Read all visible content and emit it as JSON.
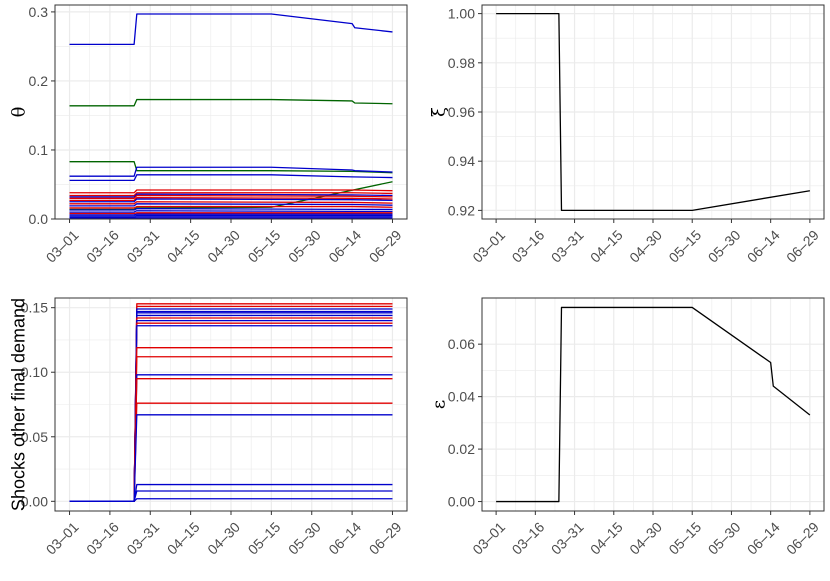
{
  "colors": {
    "red": "#e00000",
    "blue": "#0000cc",
    "green": "#006400",
    "black": "#000000",
    "grid": "#ebebeb",
    "panel_border": "#333333",
    "tick_text": "#4d4d4d"
  },
  "chart_data": [
    {
      "id": "theta",
      "type": "line",
      "ylabel": "θ",
      "x_ticks": [
        "03–01",
        "03–16",
        "03–31",
        "04–15",
        "04–30",
        "05–15",
        "05–30",
        "06–14",
        "06–29"
      ],
      "x_range": [
        "03-01",
        "06-29"
      ],
      "y_ticks": [
        "0.0",
        "0.1",
        "0.2",
        "0.3"
      ],
      "y_range": [
        0,
        0.31
      ],
      "grid": true,
      "series": [
        {
          "color": "blue",
          "points": [
            [
              "03-01",
              0.253
            ],
            [
              "03-25",
              0.253
            ],
            [
              "03-26",
              0.297
            ],
            [
              "05-15",
              0.297
            ],
            [
              "06-14",
              0.283
            ],
            [
              "06-15",
              0.277
            ],
            [
              "06-29",
              0.271
            ]
          ]
        },
        {
          "color": "green",
          "points": [
            [
              "03-01",
              0.164
            ],
            [
              "03-25",
              0.164
            ],
            [
              "03-26",
              0.173
            ],
            [
              "05-15",
              0.173
            ],
            [
              "06-14",
              0.171
            ],
            [
              "06-15",
              0.168
            ],
            [
              "06-29",
              0.167
            ]
          ]
        },
        {
          "color": "green",
          "points": [
            [
              "03-01",
              0.083
            ],
            [
              "03-25",
              0.083
            ],
            [
              "03-26",
              0.07
            ],
            [
              "05-15",
              0.07
            ],
            [
              "06-14",
              0.069
            ],
            [
              "06-29",
              0.067
            ]
          ]
        },
        {
          "color": "blue",
          "points": [
            [
              "03-01",
              0.062
            ],
            [
              "03-25",
              0.062
            ],
            [
              "03-26",
              0.075
            ],
            [
              "05-15",
              0.075
            ],
            [
              "06-14",
              0.071
            ],
            [
              "06-15",
              0.07
            ],
            [
              "06-29",
              0.068
            ]
          ]
        },
        {
          "color": "blue",
          "points": [
            [
              "03-01",
              0.056
            ],
            [
              "03-25",
              0.056
            ],
            [
              "03-26",
              0.064
            ],
            [
              "05-15",
              0.064
            ],
            [
              "06-14",
              0.061
            ],
            [
              "06-29",
              0.06
            ]
          ]
        },
        {
          "color": "green",
          "points": [
            [
              "03-01",
              0.014
            ],
            [
              "03-25",
              0.014
            ],
            [
              "03-26",
              0.016
            ],
            [
              "05-15",
              0.017
            ],
            [
              "06-29",
              0.054
            ]
          ]
        },
        {
          "color": "red",
          "points": [
            [
              "03-01",
              0.038
            ],
            [
              "03-25",
              0.038
            ],
            [
              "03-26",
              0.042
            ],
            [
              "06-14",
              0.042
            ],
            [
              "06-29",
              0.041
            ]
          ]
        },
        {
          "color": "red",
          "points": [
            [
              "03-01",
              0.034
            ],
            [
              "03-25",
              0.034
            ],
            [
              "03-26",
              0.038
            ],
            [
              "06-14",
              0.038
            ],
            [
              "06-29",
              0.037
            ]
          ]
        },
        {
          "color": "blue",
          "points": [
            [
              "03-01",
              0.032
            ],
            [
              "03-25",
              0.032
            ],
            [
              "03-26",
              0.036
            ],
            [
              "06-14",
              0.035
            ],
            [
              "06-29",
              0.034
            ]
          ]
        },
        {
          "color": "red",
          "points": [
            [
              "03-01",
              0.03
            ],
            [
              "03-25",
              0.03
            ],
            [
              "03-26",
              0.034
            ],
            [
              "06-14",
              0.033
            ],
            [
              "06-29",
              0.032
            ]
          ]
        },
        {
          "color": "red",
          "points": [
            [
              "03-01",
              0.027
            ],
            [
              "03-25",
              0.027
            ],
            [
              "03-26",
              0.031
            ],
            [
              "06-14",
              0.03
            ],
            [
              "06-29",
              0.029
            ]
          ]
        },
        {
          "color": "blue",
          "points": [
            [
              "03-01",
              0.025
            ],
            [
              "03-25",
              0.025
            ],
            [
              "03-26",
              0.029
            ],
            [
              "06-14",
              0.028
            ],
            [
              "06-29",
              0.027
            ]
          ]
        },
        {
          "color": "red",
          "points": [
            [
              "03-01",
              0.022
            ],
            [
              "03-25",
              0.022
            ],
            [
              "03-26",
              0.025
            ],
            [
              "06-14",
              0.024
            ],
            [
              "06-29",
              0.023
            ]
          ]
        },
        {
          "color": "blue",
          "points": [
            [
              "03-01",
              0.019
            ],
            [
              "03-25",
              0.019
            ],
            [
              "03-26",
              0.022
            ],
            [
              "06-14",
              0.021
            ],
            [
              "06-29",
              0.02
            ]
          ]
        },
        {
          "color": "red",
          "points": [
            [
              "03-01",
              0.016
            ],
            [
              "03-25",
              0.016
            ],
            [
              "03-26",
              0.018
            ],
            [
              "06-14",
              0.018
            ],
            [
              "06-29",
              0.017
            ]
          ]
        },
        {
          "color": "blue",
          "points": [
            [
              "03-01",
              0.013
            ],
            [
              "03-25",
              0.013
            ],
            [
              "03-26",
              0.015
            ],
            [
              "06-14",
              0.014
            ],
            [
              "06-29",
              0.014
            ]
          ]
        },
        {
          "color": "blue",
          "points": [
            [
              "03-01",
              0.01
            ],
            [
              "03-25",
              0.01
            ],
            [
              "03-26",
              0.012
            ],
            [
              "06-14",
              0.011
            ],
            [
              "06-29",
              0.011
            ]
          ]
        },
        {
          "color": "red",
          "points": [
            [
              "03-01",
              0.008
            ],
            [
              "03-25",
              0.008
            ],
            [
              "03-26",
              0.009
            ],
            [
              "06-29",
              0.009
            ]
          ]
        },
        {
          "color": "blue",
          "points": [
            [
              "03-01",
              0.006
            ],
            [
              "03-25",
              0.006
            ],
            [
              "03-26",
              0.007
            ],
            [
              "06-29",
              0.007
            ]
          ]
        },
        {
          "color": "blue",
          "points": [
            [
              "03-01",
              0.004
            ],
            [
              "03-25",
              0.004
            ],
            [
              "03-26",
              0.005
            ],
            [
              "06-29",
              0.005
            ]
          ]
        },
        {
          "color": "blue",
          "points": [
            [
              "03-01",
              0.002
            ],
            [
              "03-25",
              0.002
            ],
            [
              "03-26",
              0.003
            ],
            [
              "06-29",
              0.003
            ]
          ]
        },
        {
          "color": "blue",
          "points": [
            [
              "03-01",
              0.001
            ],
            [
              "06-29",
              0.001
            ]
          ]
        }
      ]
    },
    {
      "id": "xi",
      "type": "line",
      "ylabel": "ξ",
      "x_ticks": [
        "03–01",
        "03–16",
        "03–31",
        "04–15",
        "04–30",
        "05–15",
        "05–30",
        "06–14",
        "06–29"
      ],
      "x_range": [
        "03-01",
        "06-29"
      ],
      "y_ticks": [
        "0.92",
        "0.94",
        "0.96",
        "0.98",
        "1.00"
      ],
      "y_range": [
        0.9165,
        1.0035
      ],
      "grid": true,
      "series": [
        {
          "color": "black",
          "points": [
            [
              "03-01",
              1.0
            ],
            [
              "03-25",
              1.0
            ],
            [
              "03-26",
              0.92
            ],
            [
              "05-15",
              0.92
            ],
            [
              "06-29",
              0.928
            ]
          ]
        }
      ]
    },
    {
      "id": "shocks",
      "type": "line",
      "ylabel": "Shocks other final demand",
      "x_ticks": [
        "03–01",
        "03–16",
        "03–31",
        "04–15",
        "04–30",
        "05–15",
        "05–30",
        "06–14",
        "06–29"
      ],
      "x_range": [
        "03-01",
        "06-29"
      ],
      "y_ticks": [
        "0.00",
        "0.05",
        "0.10",
        "0.15"
      ],
      "y_range": [
        -0.0075,
        0.1575
      ],
      "grid": true,
      "series": [
        {
          "color": "red",
          "points": [
            [
              "03-01",
              0
            ],
            [
              "03-25",
              0
            ],
            [
              "03-26",
              0.153
            ],
            [
              "06-29",
              0.153
            ]
          ]
        },
        {
          "color": "red",
          "points": [
            [
              "03-01",
              0
            ],
            [
              "03-25",
              0
            ],
            [
              "03-26",
              0.151
            ],
            [
              "06-29",
              0.151
            ]
          ]
        },
        {
          "color": "blue",
          "points": [
            [
              "03-01",
              0
            ],
            [
              "03-25",
              0
            ],
            [
              "03-26",
              0.149
            ],
            [
              "06-29",
              0.149
            ]
          ]
        },
        {
          "color": "blue",
          "points": [
            [
              "03-01",
              0
            ],
            [
              "03-25",
              0
            ],
            [
              "03-26",
              0.147
            ],
            [
              "06-29",
              0.147
            ]
          ]
        },
        {
          "color": "blue",
          "points": [
            [
              "03-01",
              0
            ],
            [
              "03-25",
              0
            ],
            [
              "03-26",
              0.146
            ],
            [
              "06-29",
              0.146
            ]
          ]
        },
        {
          "color": "blue",
          "points": [
            [
              "03-01",
              0
            ],
            [
              "03-25",
              0
            ],
            [
              "03-26",
              0.144
            ],
            [
              "06-29",
              0.144
            ]
          ]
        },
        {
          "color": "red",
          "points": [
            [
              "03-01",
              0
            ],
            [
              "03-25",
              0
            ],
            [
              "03-26",
              0.142
            ],
            [
              "06-29",
              0.142
            ]
          ]
        },
        {
          "color": "blue",
          "points": [
            [
              "03-01",
              0
            ],
            [
              "03-25",
              0
            ],
            [
              "03-26",
              0.14
            ],
            [
              "06-29",
              0.14
            ]
          ]
        },
        {
          "color": "red",
          "points": [
            [
              "03-01",
              0
            ],
            [
              "03-25",
              0
            ],
            [
              "03-26",
              0.138
            ],
            [
              "06-29",
              0.138
            ]
          ]
        },
        {
          "color": "blue",
          "points": [
            [
              "03-01",
              0
            ],
            [
              "03-25",
              0
            ],
            [
              "03-26",
              0.136
            ],
            [
              "06-29",
              0.136
            ]
          ]
        },
        {
          "color": "red",
          "points": [
            [
              "03-01",
              0
            ],
            [
              "03-25",
              0
            ],
            [
              "03-26",
              0.119
            ],
            [
              "06-29",
              0.119
            ]
          ]
        },
        {
          "color": "red",
          "points": [
            [
              "03-01",
              0
            ],
            [
              "03-25",
              0
            ],
            [
              "03-26",
              0.112
            ],
            [
              "06-29",
              0.112
            ]
          ]
        },
        {
          "color": "blue",
          "points": [
            [
              "03-01",
              0
            ],
            [
              "03-25",
              0
            ],
            [
              "03-26",
              0.098
            ],
            [
              "06-29",
              0.098
            ]
          ]
        },
        {
          "color": "red",
          "points": [
            [
              "03-01",
              0
            ],
            [
              "03-25",
              0
            ],
            [
              "03-26",
              0.095
            ],
            [
              "06-29",
              0.095
            ]
          ]
        },
        {
          "color": "red",
          "points": [
            [
              "03-01",
              0
            ],
            [
              "03-25",
              0
            ],
            [
              "03-26",
              0.076
            ],
            [
              "06-29",
              0.076
            ]
          ]
        },
        {
          "color": "blue",
          "points": [
            [
              "03-01",
              0
            ],
            [
              "03-25",
              0
            ],
            [
              "03-26",
              0.067
            ],
            [
              "06-29",
              0.067
            ]
          ]
        },
        {
          "color": "blue",
          "points": [
            [
              "03-01",
              0
            ],
            [
              "03-25",
              0
            ],
            [
              "03-26",
              0.013
            ],
            [
              "06-29",
              0.013
            ]
          ]
        },
        {
          "color": "blue",
          "points": [
            [
              "03-01",
              0
            ],
            [
              "03-25",
              0
            ],
            [
              "03-26",
              0.008
            ],
            [
              "06-29",
              0.008
            ]
          ]
        },
        {
          "color": "blue",
          "points": [
            [
              "03-01",
              0
            ],
            [
              "03-25",
              0
            ],
            [
              "03-26",
              0.002
            ],
            [
              "06-29",
              0.002
            ]
          ]
        }
      ]
    },
    {
      "id": "epsilon",
      "type": "line",
      "ylabel": "ε",
      "x_ticks": [
        "03–01",
        "03–16",
        "03–31",
        "04–15",
        "04–30",
        "05–15",
        "05–30",
        "06–14",
        "06–29"
      ],
      "x_range": [
        "03-01",
        "06-29"
      ],
      "y_ticks": [
        "0.00",
        "0.02",
        "0.04",
        "0.06"
      ],
      "y_range": [
        -0.0036,
        0.0776
      ],
      "grid": true,
      "series": [
        {
          "color": "black",
          "points": [
            [
              "03-01",
              0
            ],
            [
              "03-25",
              0
            ],
            [
              "03-26",
              0.074
            ],
            [
              "05-15",
              0.074
            ],
            [
              "06-14",
              0.053
            ],
            [
              "06-15",
              0.044
            ],
            [
              "06-29",
              0.033
            ]
          ]
        }
      ]
    }
  ]
}
